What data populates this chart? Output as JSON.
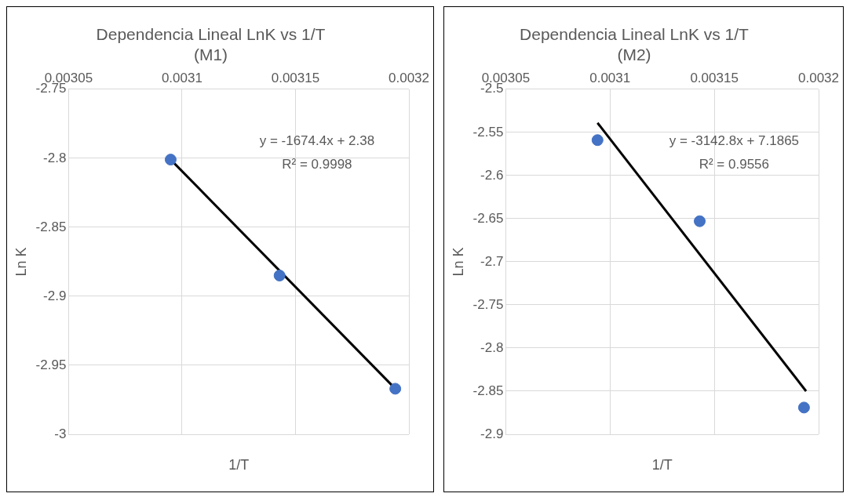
{
  "chart_data": [
    {
      "type": "scatter",
      "title": "Dependencia Lineal LnK vs 1/T (M1)",
      "xlabel": "1/T",
      "ylabel": "Ln K",
      "xlim": [
        0.00305,
        0.0032
      ],
      "xticks": [
        0.00305,
        0.0031,
        0.00315,
        0.0032
      ],
      "ylim": [
        -3,
        -2.75
      ],
      "yticks": [
        -3,
        -2.95,
        -2.9,
        -2.85,
        -2.8,
        -2.75
      ],
      "grid": true,
      "legend": false,
      "series": [
        {
          "color": "#4472c4",
          "marker": "circle",
          "x": [
            0.003095,
            0.003143,
            0.003194
          ],
          "values": [
            -2.801,
            -2.885,
            -2.967
          ]
        },
        {
          "type": "line",
          "marker": "none",
          "color": "#000000",
          "x": [
            0.003095,
            0.003194
          ],
          "values": [
            -2.801,
            -2.967
          ]
        }
      ],
      "annotations": [
        "y = -1674.4x + 2.38",
        "R² = 0.9998"
      ]
    },
    {
      "type": "scatter",
      "title": "Dependencia Lineal LnK vs 1/T (M2)",
      "xlabel": "1/T",
      "ylabel": "Ln K",
      "xlim": [
        0.00305,
        0.0032
      ],
      "xticks": [
        0.00305,
        0.0031,
        0.00315,
        0.0032
      ],
      "ylim": [
        -2.9,
        -2.5
      ],
      "yticks": [
        -2.9,
        -2.85,
        -2.8,
        -2.75,
        -2.7,
        -2.65,
        -2.6,
        -2.55,
        -2.5
      ],
      "grid": true,
      "legend": false,
      "series": [
        {
          "color": "#4472c4",
          "marker": "circle",
          "x": [
            0.003094,
            0.003143,
            0.003193
          ],
          "values": [
            -2.559,
            -2.653,
            -2.869
          ]
        },
        {
          "type": "line",
          "marker": "none",
          "color": "#000000",
          "x": [
            0.003094,
            0.003194
          ],
          "values": [
            -2.539,
            -2.85
          ]
        }
      ],
      "annotations": [
        "y = -3142.8x + 7.1865",
        "R² = 0.9556"
      ]
    }
  ]
}
